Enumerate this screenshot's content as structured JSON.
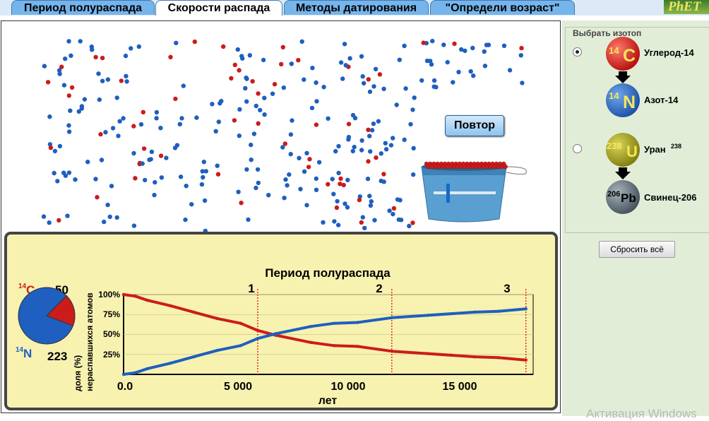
{
  "tabs": [
    {
      "label": "Период полураспада",
      "active": false
    },
    {
      "label": "Скорости распада",
      "active": true
    },
    {
      "label": "Методы датирования",
      "active": false
    },
    {
      "label": "\"Определи возраст\"",
      "active": false
    }
  ],
  "logo": "PhET",
  "repeat_button": "Повтор",
  "chart": {
    "title": "Период полураспада",
    "ylabel_line1": "доля (%)",
    "ylabel_line2": "нераспавшихся атомов",
    "xlabel": "лет",
    "y_ticks": [
      "100%",
      "75%",
      "50%",
      "25%"
    ],
    "x_ticks": [
      "0.0",
      "5 000",
      "10 000",
      "15 000"
    ],
    "halflife_markers": [
      "1",
      "2",
      "3"
    ]
  },
  "pie": {
    "c_mass": "14",
    "c_symbol": "C",
    "c_count": "50",
    "n_mass": "14",
    "n_symbol": "N",
    "n_count": "223"
  },
  "side_panel": {
    "title": "Выбрать изотоп",
    "options": [
      {
        "parent_mass": "14",
        "parent_symbol": "C",
        "parent_name": "Углерод-14",
        "daughter_mass": "14",
        "daughter_symbol": "N",
        "daughter_name": "Азот-14",
        "selected": true
      },
      {
        "parent_mass": "238",
        "parent_symbol": "U",
        "parent_name": "Уран",
        "parent_name_sup": "238",
        "daughter_mass": "206",
        "daughter_symbol": "Pb",
        "daughter_name": "Свинец-206",
        "selected": false
      }
    ],
    "reset_button": "Сбросить всё"
  },
  "watermark": "Активация Windows",
  "colors": {
    "undecayed": "#cc1b1b",
    "decayed": "#1e5fbf",
    "chart_bg": "#f7f2b0",
    "side_bg": "#e2edd8",
    "tab_bg": "#76b5ec"
  },
  "chart_data": {
    "type": "line",
    "title": "Период полураспада",
    "xlabel": "лет",
    "ylabel": "доля (%) нераспавшихся атомов",
    "xlim": [
      0,
      17500
    ],
    "ylim": [
      0,
      100
    ],
    "x_ticks": [
      0,
      5000,
      10000,
      15000
    ],
    "y_ticks": [
      25,
      50,
      75,
      100
    ],
    "halflife_markers": [
      {
        "label": "1",
        "x": 5730
      },
      {
        "label": "2",
        "x": 11460
      },
      {
        "label": "3",
        "x": 17190
      }
    ],
    "series": [
      {
        "color": "#cc1b1b",
        "x": [
          0,
          500,
          1000,
          2000,
          3000,
          4000,
          5000,
          5730,
          6500,
          8000,
          9000,
          10000,
          11460,
          13000,
          14000,
          15000,
          16000,
          17190
        ],
        "y": [
          100,
          98,
          93,
          86,
          78,
          70,
          64,
          55,
          49,
          40,
          36,
          35,
          29,
          26,
          24,
          22,
          21,
          18
        ]
      },
      {
        "color": "#1e5fbf",
        "x": [
          0,
          500,
          1000,
          2000,
          3000,
          4000,
          5000,
          5730,
          6500,
          8000,
          9000,
          10000,
          11460,
          13000,
          14000,
          15000,
          16000,
          17190
        ],
        "y": [
          0,
          2,
          7,
          14,
          22,
          30,
          36,
          45,
          51,
          60,
          64,
          65,
          71,
          74,
          76,
          78,
          79,
          82
        ]
      }
    ]
  }
}
